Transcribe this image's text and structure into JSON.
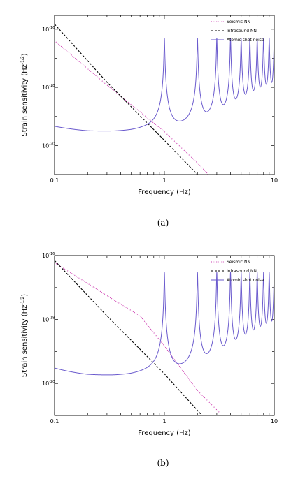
{
  "chart_data": [
    {
      "type": "line",
      "caption": "(a)",
      "xlabel": "Frequency (Hz)",
      "ylabel": "Strain sensitivity (Hz",
      "ylabel_exp": "-1/2",
      "ylabel_close": ")",
      "xscale": "log",
      "yscale": "log",
      "xlim": [
        0.1,
        10
      ],
      "ylim": [
        1e-21,
        3e-16
      ],
      "x_ticks": [
        "0.1",
        "1",
        "10"
      ],
      "y_ticks": [
        {
          "base": "10",
          "exp": "-16",
          "value": 1e-16
        },
        {
          "base": "10",
          "exp": "-18",
          "value": 1e-18
        },
        {
          "base": "10",
          "exp": "-20",
          "value": 1e-20
        }
      ],
      "legend_position": "top-right",
      "series": [
        {
          "name": "Seismic NN",
          "color": "#cc3bb0",
          "style": "dotted",
          "x": [
            0.1,
            0.3,
            1,
            2,
            3
          ],
          "y": [
            4e-17,
            1.2e-18,
            3e-20,
            2.5e-21,
            5e-22
          ]
        },
        {
          "name": "Infrasound NN",
          "color": "#000000",
          "style": "dashed",
          "x": [
            0.1,
            0.3,
            1,
            2
          ],
          "y": [
            1.5e-16,
            1.5e-18,
            1.5e-20,
            1e-21
          ]
        },
        {
          "name": "Atomic shot noise",
          "color": "#6a5acd",
          "style": "solid",
          "type": "resonant",
          "floor_x": [
            0.1,
            0.2,
            0.35,
            0.5,
            0.7,
            1.0,
            1.5,
            3,
            10
          ],
          "floor_y": [
            2.5e-20,
            1e-20,
            6.5e-21,
            5.8e-21,
            7e-21,
            1e-20,
            5e-21,
            5.5e-21,
            5.5e-21
          ],
          "peaks": [
            1,
            2,
            3,
            4,
            5,
            6,
            7,
            8,
            9,
            10
          ],
          "peak_value": 5e-17,
          "linewidth": 0.05
        }
      ]
    },
    {
      "type": "line",
      "caption": "(b)",
      "xlabel": "Frequency (Hz)",
      "ylabel": "Strain sensitivity (Hz",
      "ylabel_exp": "-1/2",
      "ylabel_close": ")",
      "xscale": "log",
      "yscale": "log",
      "xlim": [
        0.1,
        10
      ],
      "ylim": [
        1e-21,
        1e-16
      ],
      "x_ticks": [
        "0.1",
        "1",
        "10"
      ],
      "y_ticks": [
        {
          "base": "10",
          "exp": "-16",
          "value": 1e-16
        },
        {
          "base": "10",
          "exp": "-18",
          "value": 1e-18
        },
        {
          "base": "10",
          "exp": "-20",
          "value": 1e-20
        }
      ],
      "legend_position": "top-right",
      "series": [
        {
          "name": "Seismic NN",
          "color": "#cc3bb0",
          "style": "dotted",
          "x": [
            0.1,
            0.35,
            0.6,
            1,
            2,
            3.2
          ],
          "y": [
            6e-17,
            4e-18,
            1.3e-18,
            1.5e-19,
            6e-21,
            1.2e-21
          ]
        },
        {
          "name": "Infrasound NN",
          "color": "#000000",
          "style": "dashed",
          "x": [
            0.1,
            0.3,
            1,
            2.2
          ],
          "y": [
            7e-17,
            1.3e-18,
            2e-20,
            1e-21
          ]
        },
        {
          "name": "Atomic shot noise",
          "color": "#6a5acd",
          "style": "solid",
          "type": "resonant",
          "floor_x": [
            0.1,
            0.2,
            0.35,
            0.5,
            0.7,
            1.0,
            1.5,
            3,
            10
          ],
          "floor_y": [
            1.8e-20,
            6e-21,
            3.5e-21,
            3e-21,
            4e-21,
            6e-21,
            2.8e-21,
            3e-21,
            3e-21
          ],
          "peaks": [
            1,
            2,
            3,
            4,
            5,
            6,
            7,
            8,
            9,
            10
          ],
          "peak_value": 3e-17,
          "linewidth": 0.05
        }
      ]
    }
  ]
}
